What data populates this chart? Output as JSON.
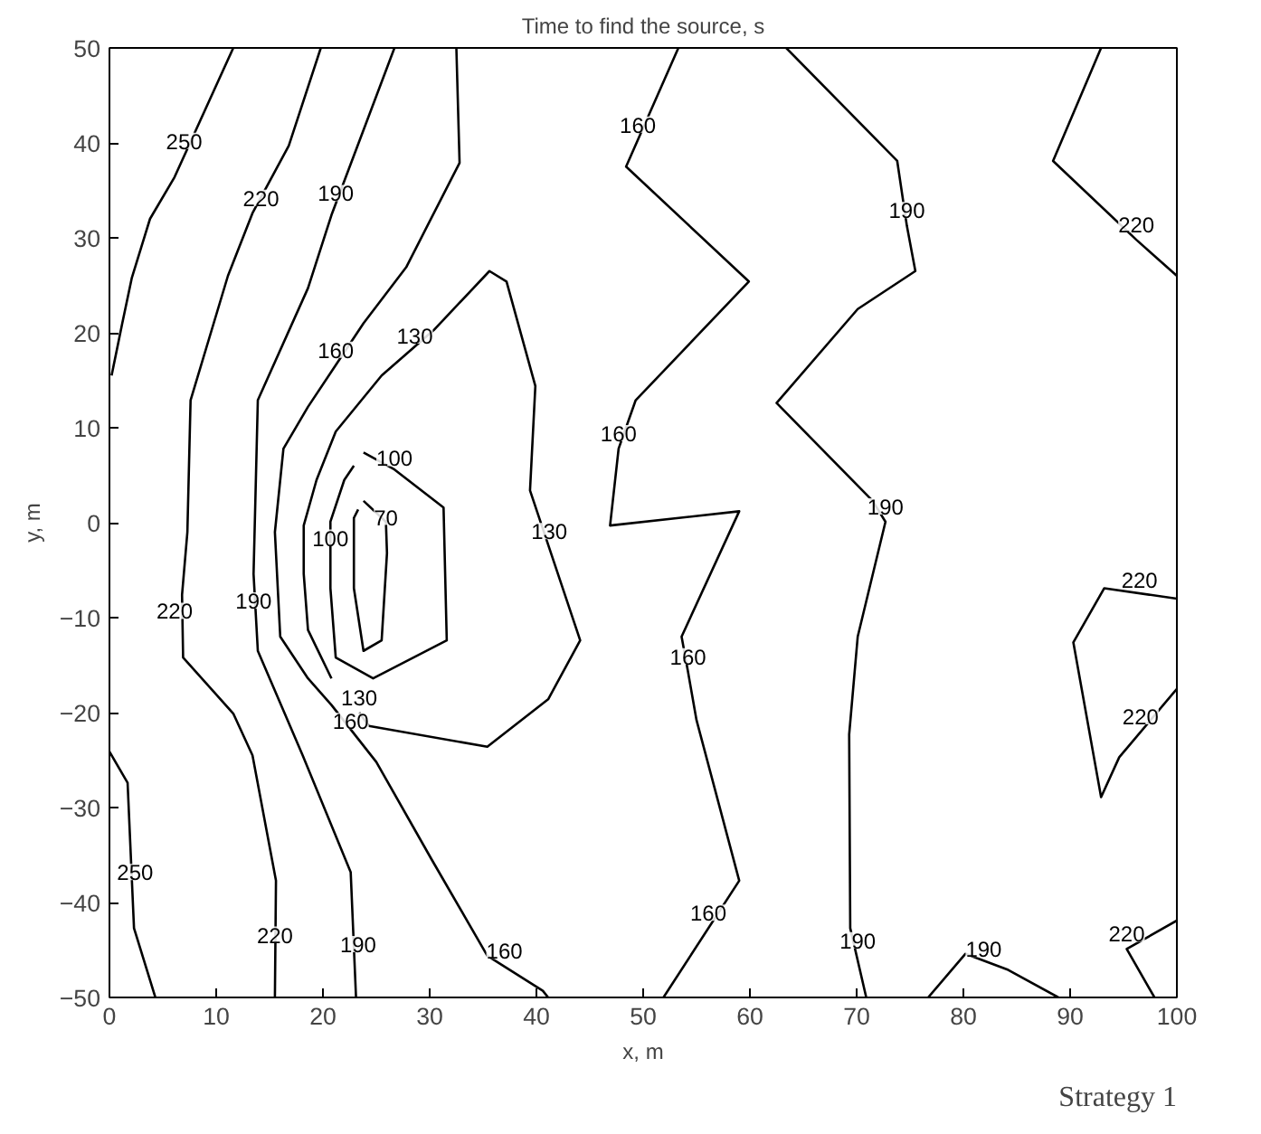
{
  "chart_data": {
    "type": "line",
    "title": "Time to find the source, s",
    "xlabel": "x, m",
    "ylabel": "y, m",
    "xlim": [
      0,
      100
    ],
    "ylim": [
      -50,
      50
    ],
    "xticks": [
      0,
      10,
      20,
      30,
      40,
      50,
      60,
      70,
      80,
      90,
      100
    ],
    "yticks": [
      -50,
      -40,
      -30,
      -20,
      -10,
      0,
      10,
      20,
      30,
      40,
      50
    ],
    "grid": false,
    "marker": "none",
    "line_style": "solid",
    "series": [
      {
        "color": "#000000",
        "x": [
          11.6,
          6.1,
          3.8,
          2.1,
          1.2,
          0.2
        ],
        "values": [
          50,
          36.4,
          32,
          25.8,
          21,
          15.5
        ]
      },
      {
        "color": "#000000",
        "x": [
          0,
          1.7,
          2.3,
          4.3
        ],
        "values": [
          -24.1,
          -27.4,
          -42.7,
          -50
        ]
      },
      {
        "color": "#000000",
        "x": [
          19.8,
          16.8,
          13.4,
          11.1,
          7.6,
          7.3,
          6.8,
          6.9,
          11.6,
          13.4,
          15.6,
          15.5
        ],
        "values": [
          50,
          39.7,
          32.6,
          26,
          12.9,
          -1,
          -7.6,
          -14.2,
          -20.1,
          -24.5,
          -37.7,
          -50
        ]
      },
      {
        "color": "#000000",
        "x": [
          26.7,
          20.8,
          18.6,
          13.9,
          13.5,
          13.9,
          18.1,
          22.6,
          23.1
        ],
        "values": [
          50,
          32.4,
          24.7,
          12.9,
          -5.4,
          -13.5,
          -24.5,
          -36.8,
          -50
        ]
      },
      {
        "color": "#000000",
        "x": [
          32.5,
          32.8,
          27.8,
          23.8,
          21.2,
          18.6,
          16.3,
          15.5,
          16,
          18.6,
          20.8,
          25,
          30.2,
          35.4,
          40.6,
          41.1
        ],
        "values": [
          50,
          37.9,
          26.9,
          21,
          16.6,
          12.2,
          7.8,
          -1,
          -12,
          -16.4,
          -19.2,
          -25.2,
          -35.5,
          -45.6,
          -49.3,
          -50
        ]
      },
      {
        "color": "#000000",
        "x": [
          20.8,
          18.6,
          18.2,
          18.2,
          19.4,
          21.2,
          25.5,
          30.4,
          35.6,
          37.2,
          39.9,
          39.4,
          44.1,
          41.1,
          35.4,
          24.3,
          23.4
        ],
        "values": [
          -16.4,
          -11.3,
          -5.4,
          -0.3,
          4.5,
          9.6,
          15.5,
          20.3,
          26.5,
          25.4,
          14.4,
          3.4,
          -12.4,
          -18.6,
          -23.6,
          -21.4,
          -20
        ]
      },
      {
        "color": "#000000",
        "x": [
          23.8,
          26.7,
          31.3,
          31.6,
          24.7,
          21.2,
          20.7,
          20.7,
          22,
          22.9
        ],
        "values": [
          7.4,
          5.6,
          1.6,
          -12.4,
          -16.4,
          -14.2,
          -6.9,
          0.1,
          4.5,
          6
        ]
      },
      {
        "color": "#000000",
        "x": [
          23.8,
          25.9,
          26,
          25.5,
          23.8,
          22.9,
          22.9,
          23.3
        ],
        "values": [
          2.3,
          0.1,
          -3.2,
          -12.4,
          -13.5,
          -6.9,
          0.5,
          1.4
        ]
      },
      {
        "color": "#000000",
        "x": [
          53.3,
          49.5,
          48.4,
          59.9,
          49.3,
          47.7,
          46.9,
          59,
          53.6,
          54.2,
          55,
          59,
          51.9
        ],
        "values": [
          50,
          40.3,
          37.5,
          25.4,
          12.9,
          7.8,
          -0.3,
          1.2,
          -12,
          -15.7,
          -20.8,
          -37.7,
          -50
        ]
      },
      {
        "color": "#000000",
        "x": [
          63.4,
          73.8,
          74.7,
          75.5,
          70.1,
          62.5,
          71.5,
          72.7,
          70.1,
          69.3,
          69.4,
          70.9
        ],
        "values": [
          50,
          38.1,
          31.3,
          26.5,
          22.5,
          12.6,
          2.3,
          0.1,
          -12,
          -22.3,
          -42.7,
          -50
        ]
      },
      {
        "color": "#000000",
        "x": [
          92.9,
          88.4,
          96.2,
          100
        ],
        "values": [
          50,
          38.1,
          29.8,
          26
        ]
      },
      {
        "color": "#000000",
        "x": [
          100,
          93.2,
          90.3,
          92.9,
          94.6,
          100
        ],
        "values": [
          -8,
          -6.9,
          -12.6,
          -28.9,
          -24.7,
          -17.5
        ]
      },
      {
        "color": "#000000",
        "x": [
          97.9,
          95.3,
          100
        ],
        "values": [
          -50,
          -44.9,
          -41.9
        ]
      },
      {
        "color": "#000000",
        "x": [
          76.7,
          80.2,
          84.2,
          88.9
        ],
        "values": [
          -50,
          -45.4,
          -47.1,
          -50
        ]
      }
    ],
    "annotations": [
      {
        "text": "250",
        "x": 7.0,
        "y": 38.6
      },
      {
        "text": "220",
        "x": 14.2,
        "y": 32.6
      },
      {
        "text": "190",
        "x": 21.2,
        "y": 33.1
      },
      {
        "text": "160",
        "x": 21.2,
        "y": 16.6
      },
      {
        "text": "130",
        "x": 28.6,
        "y": 18.1
      },
      {
        "text": "100",
        "x": 26.7,
        "y": 5.2
      },
      {
        "text": "70",
        "x": 25.9,
        "y": -1
      },
      {
        "text": "100",
        "x": 20.7,
        "y": -3.2
      },
      {
        "text": "190",
        "x": 13.5,
        "y": -9.8
      },
      {
        "text": "220",
        "x": 6.1,
        "y": -10.9
      },
      {
        "text": "130",
        "x": 23.4,
        "y": -20
      },
      {
        "text": "160",
        "x": 22.6,
        "y": -22.5
      },
      {
        "text": "130",
        "x": 41.2,
        "y": -2.5
      },
      {
        "text": "160",
        "x": 49.5,
        "y": 40.3
      },
      {
        "text": "160",
        "x": 47.7,
        "y": 7.8
      },
      {
        "text": "160",
        "x": 54.2,
        "y": -15.7
      },
      {
        "text": "160",
        "x": 56.1,
        "y": -42.7
      },
      {
        "text": "190",
        "x": 74.7,
        "y": 31.3
      },
      {
        "text": "190",
        "x": 72.7,
        "y": 0.1
      },
      {
        "text": "190",
        "x": 70.1,
        "y": -45.6
      },
      {
        "text": "220",
        "x": 96.2,
        "y": 29.8
      },
      {
        "text": "220",
        "x": 96.5,
        "y": -7.6
      },
      {
        "text": "220",
        "x": 96.6,
        "y": -22
      },
      {
        "text": "220",
        "x": 95.3,
        "y": -44.9
      },
      {
        "text": "190",
        "x": 81.9,
        "y": -46.5
      },
      {
        "text": "250",
        "x": 2.4,
        "y": -38.4
      },
      {
        "text": "220",
        "x": 15.5,
        "y": -45
      },
      {
        "text": "190",
        "x": 23.3,
        "y": -46
      },
      {
        "text": "160",
        "x": 37,
        "y": -46.7
      },
      "Strategy 1"
    ]
  }
}
